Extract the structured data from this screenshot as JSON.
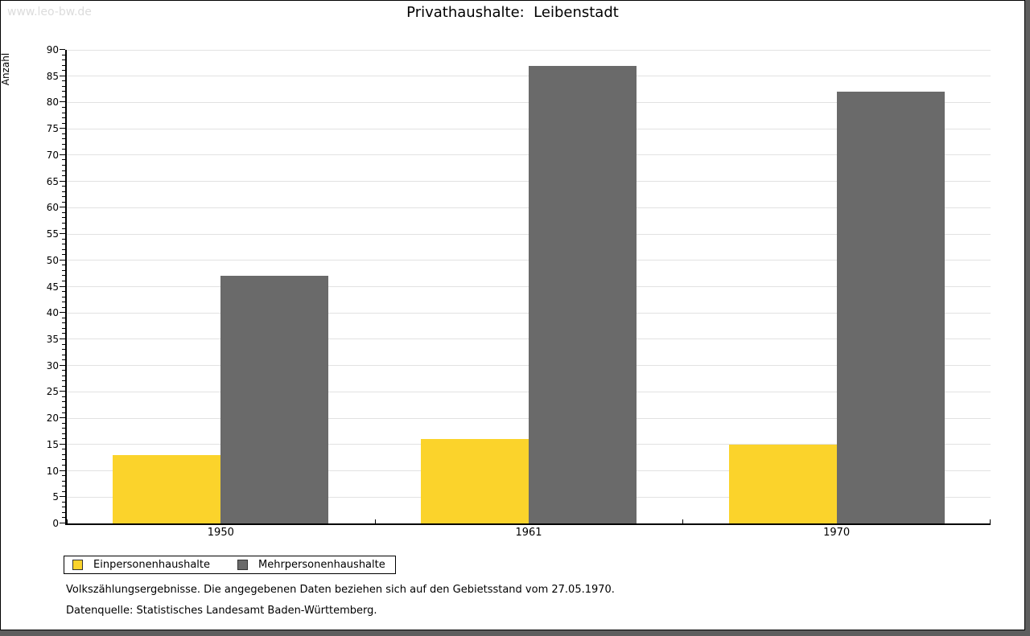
{
  "window": {
    "watermark": "www.leo-bw.de"
  },
  "chart_data": {
    "type": "bar",
    "title": "Privathaushalte:  Leibenstadt",
    "ylabel": "Anzahl",
    "xlabel": "",
    "categories": [
      "1950",
      "1961",
      "1970"
    ],
    "series": [
      {
        "name": "Einpersonenhaushalte",
        "color": "#FBD32B",
        "values": [
          13,
          16,
          15
        ]
      },
      {
        "name": "Mehrpersonenhaushalte",
        "color": "#6A6A6A",
        "values": [
          47,
          87,
          82
        ]
      }
    ],
    "ylim": [
      0,
      90
    ],
    "ytick_step": 5,
    "yminor_step": 1,
    "grid": true,
    "legend_position": "bottom-left",
    "gridline_color": "#e2e2e2"
  },
  "footer": {
    "line1": "Volkszählungsergebnisse. Die angegebenen Daten beziehen sich auf den Gebietsstand vom 27.05.1970.",
    "line2": "Datenquelle: Statistisches Landesamt Baden-Württemberg."
  }
}
